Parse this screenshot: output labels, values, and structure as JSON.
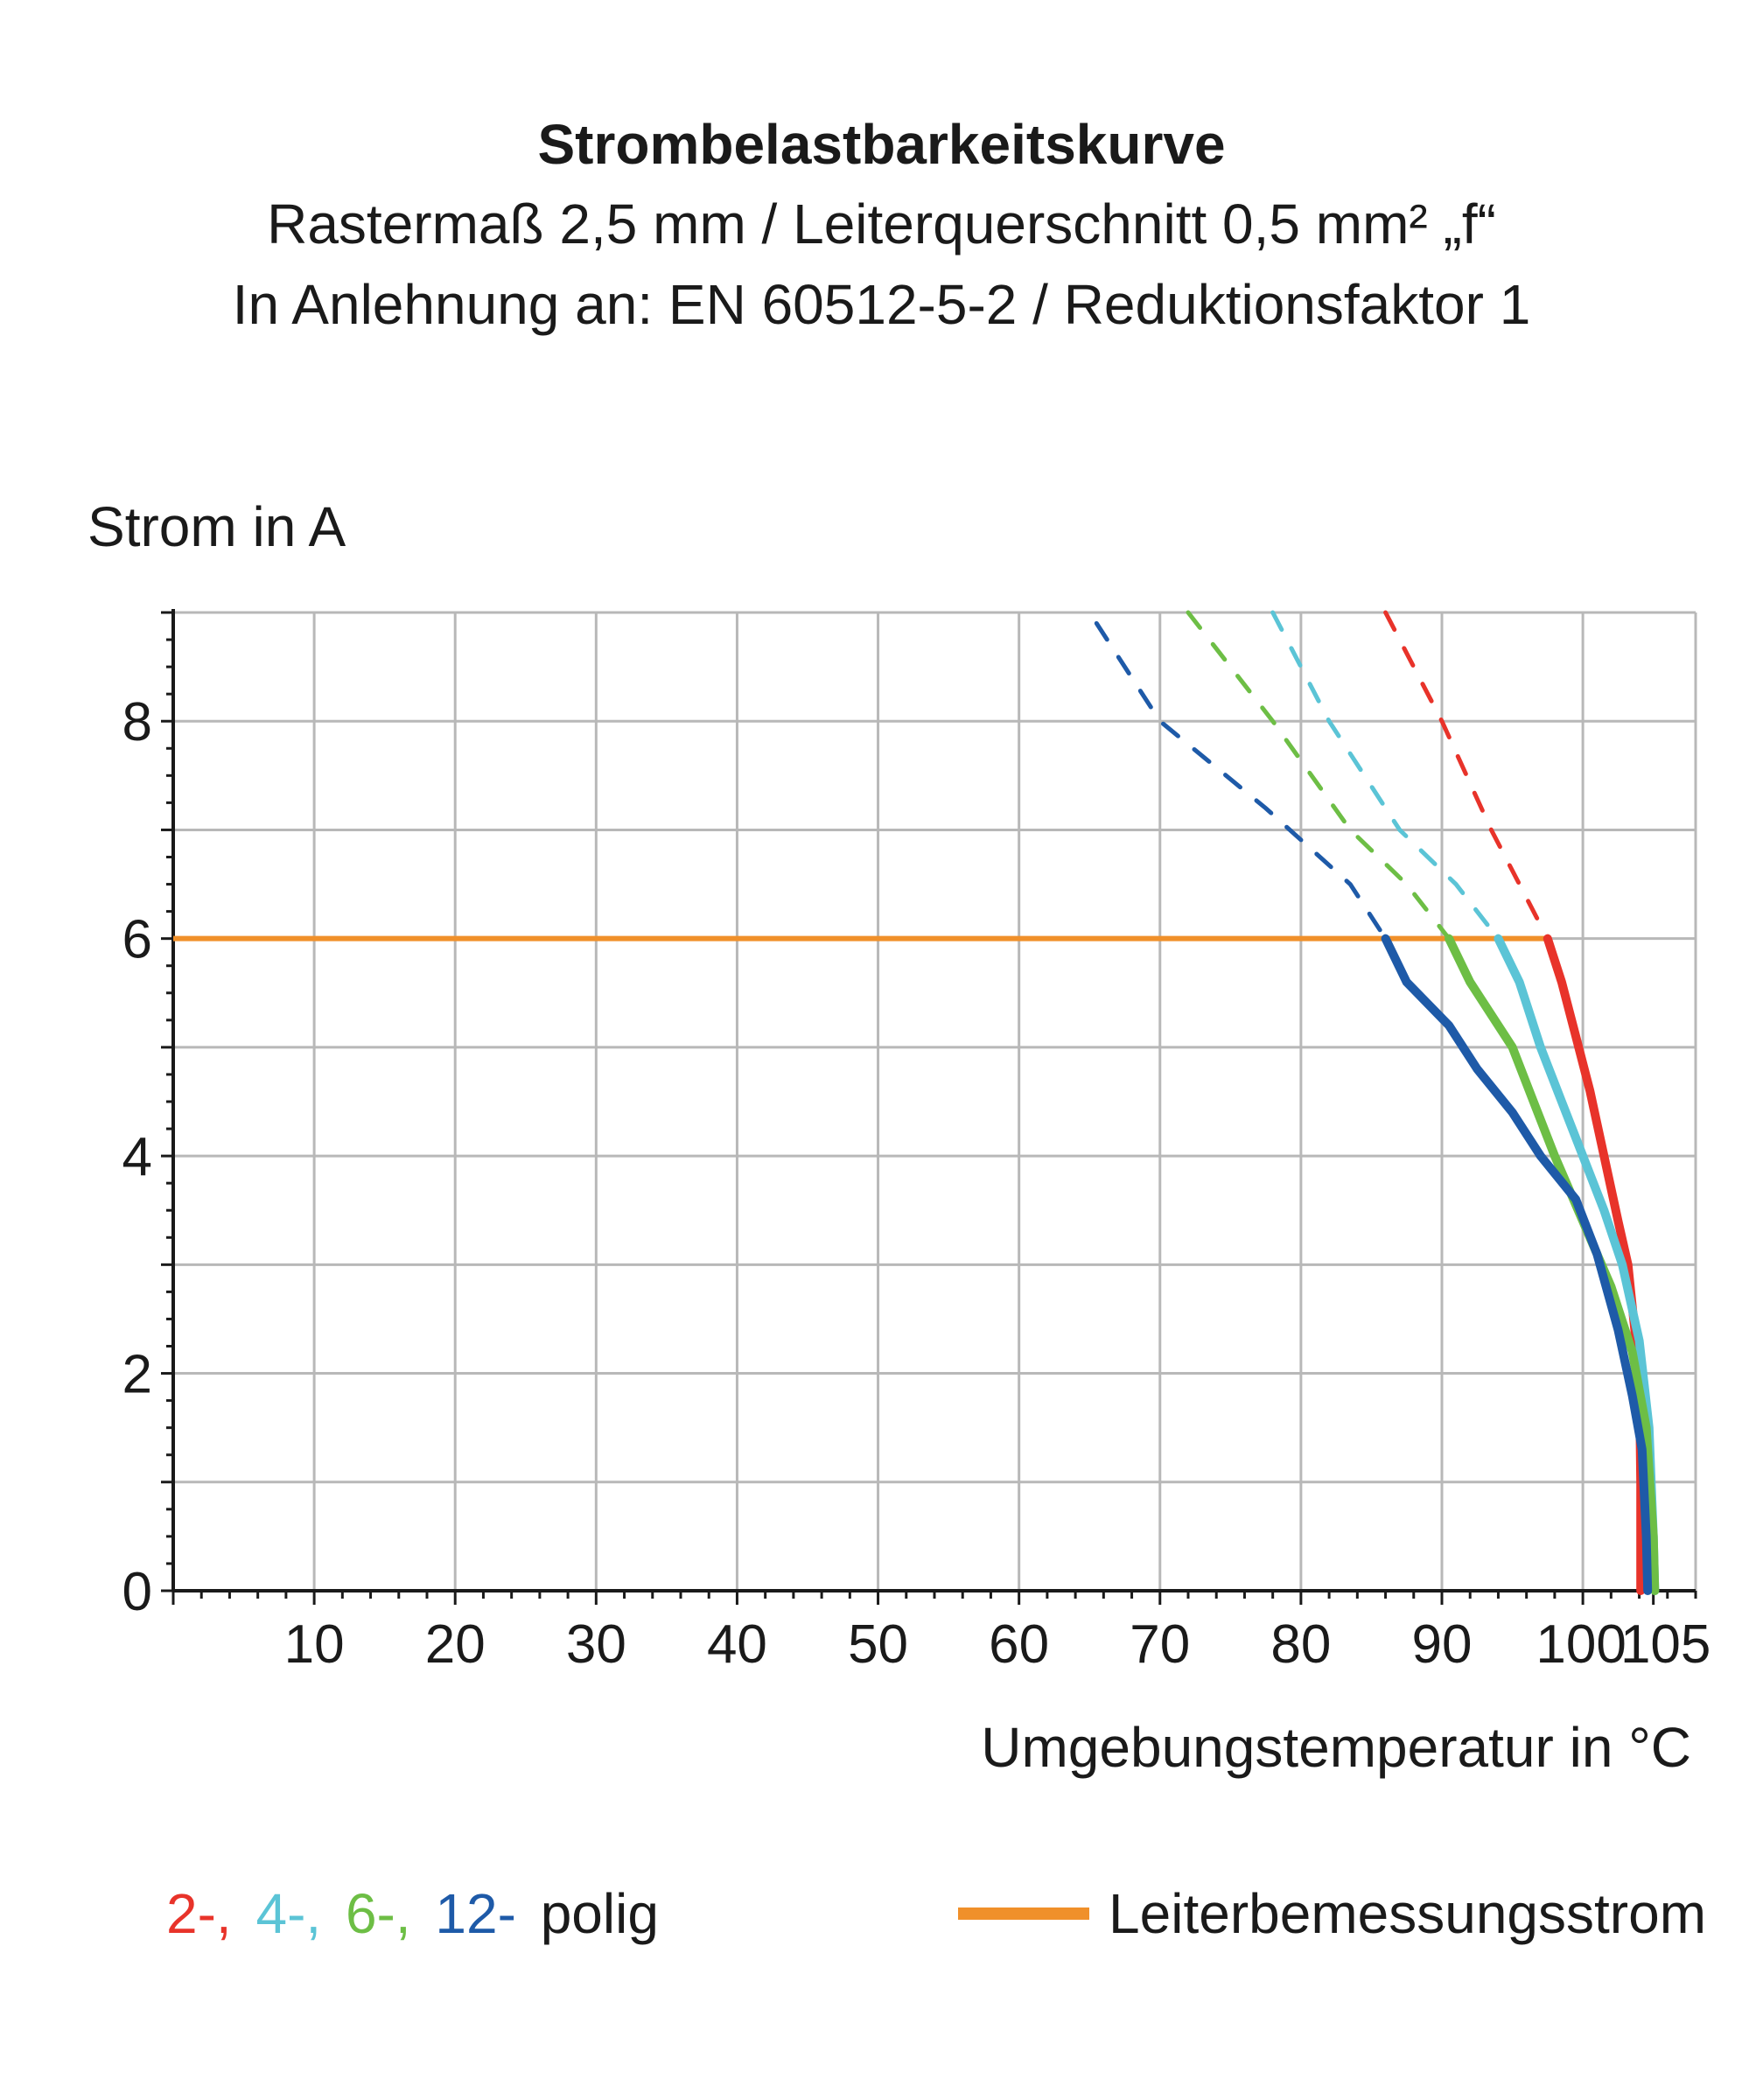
{
  "chart_data": {
    "type": "line",
    "title": "Strombelastbarkeitskurve",
    "subtitle_lines": [
      "Rastermaß 2,5 mm / Leiterquerschnitt 0,5 mm² „f“",
      "In Anlehnung an: EN 60512-5-2 / Reduktionsfaktor 1"
    ],
    "ylabel": "Strom in A",
    "xlabel": "Umgebungstemperatur in °C",
    "xlim": [
      0,
      108
    ],
    "ylim": [
      0,
      9
    ],
    "x_ticks": [
      10,
      20,
      30,
      40,
      50,
      60,
      70,
      80,
      90,
      100,
      105
    ],
    "y_ticks": [
      0,
      2,
      4,
      6,
      8
    ],
    "grid": true,
    "legend_items": [
      {
        "label": "2-,",
        "color": "#E8332A"
      },
      {
        "label": "4-,",
        "color": "#5BC4D6"
      },
      {
        "label": "6-,",
        "color": "#6DBE45"
      },
      {
        "label": "12-",
        "color": "#1E5AA8"
      },
      {
        "label": "polig",
        "color": "#1a1a1a"
      }
    ],
    "reference_line": {
      "name": "Leiterbemessungsstrom",
      "y": 6,
      "color": "#F0902A"
    },
    "series": [
      {
        "color": "#E8332A",
        "solid": [
          [
            97.5,
            6.0
          ],
          [
            98.5,
            5.6
          ],
          [
            99.5,
            5.1
          ],
          [
            100.5,
            4.6
          ],
          [
            101.5,
            4.0
          ],
          [
            102.5,
            3.4
          ],
          [
            103.2,
            3.0
          ],
          [
            103.6,
            2.5
          ],
          [
            104.0,
            2.0
          ],
          [
            104.1,
            1.0
          ],
          [
            104.1,
            0
          ]
        ],
        "dashed": [
          [
            86,
            9.0
          ],
          [
            90,
            8.0
          ],
          [
            93.5,
            7.0
          ],
          [
            97.5,
            6.0
          ]
        ]
      },
      {
        "color": "#5BC4D6",
        "solid": [
          [
            94,
            6.0
          ],
          [
            95.5,
            5.6
          ],
          [
            97,
            5.0
          ],
          [
            98.5,
            4.5
          ],
          [
            100,
            4.0
          ],
          [
            101.5,
            3.5
          ],
          [
            102.8,
            3.0
          ],
          [
            104,
            2.3
          ],
          [
            104.7,
            1.5
          ],
          [
            105,
            0.5
          ],
          [
            105.1,
            0
          ]
        ],
        "dashed": [
          [
            78,
            9.0
          ],
          [
            82,
            8.0
          ],
          [
            87,
            7.0
          ],
          [
            91,
            6.5
          ],
          [
            94,
            6.0
          ]
        ]
      },
      {
        "color": "#6DBE45",
        "solid": [
          [
            90.5,
            6.0
          ],
          [
            92,
            5.6
          ],
          [
            93.5,
            5.3
          ],
          [
            95,
            5.0
          ],
          [
            96.5,
            4.5
          ],
          [
            98,
            4.0
          ],
          [
            100,
            3.4
          ],
          [
            102,
            2.8
          ],
          [
            103.5,
            2.2
          ],
          [
            104.5,
            1.5
          ],
          [
            105,
            0.5
          ],
          [
            105.1,
            0
          ]
        ],
        "dashed": [
          [
            72,
            9.0
          ],
          [
            78,
            8.0
          ],
          [
            83.5,
            7.0
          ],
          [
            87.5,
            6.5
          ],
          [
            90.5,
            6.0
          ]
        ]
      },
      {
        "color": "#1E5AA8",
        "solid": [
          [
            86,
            6.0
          ],
          [
            87.5,
            5.6
          ],
          [
            90.5,
            5.2
          ],
          [
            92.5,
            4.8
          ],
          [
            95,
            4.4
          ],
          [
            97,
            4.0
          ],
          [
            99.5,
            3.6
          ],
          [
            101,
            3.1
          ],
          [
            102.5,
            2.4
          ],
          [
            103.5,
            1.8
          ],
          [
            104.2,
            1.3
          ],
          [
            104.5,
            0.5
          ],
          [
            104.6,
            0
          ]
        ],
        "dashed": [
          [
            65.5,
            8.9
          ],
          [
            70,
            8.0
          ],
          [
            77.5,
            7.2
          ],
          [
            83.5,
            6.5
          ],
          [
            86,
            6.0
          ]
        ]
      }
    ]
  }
}
